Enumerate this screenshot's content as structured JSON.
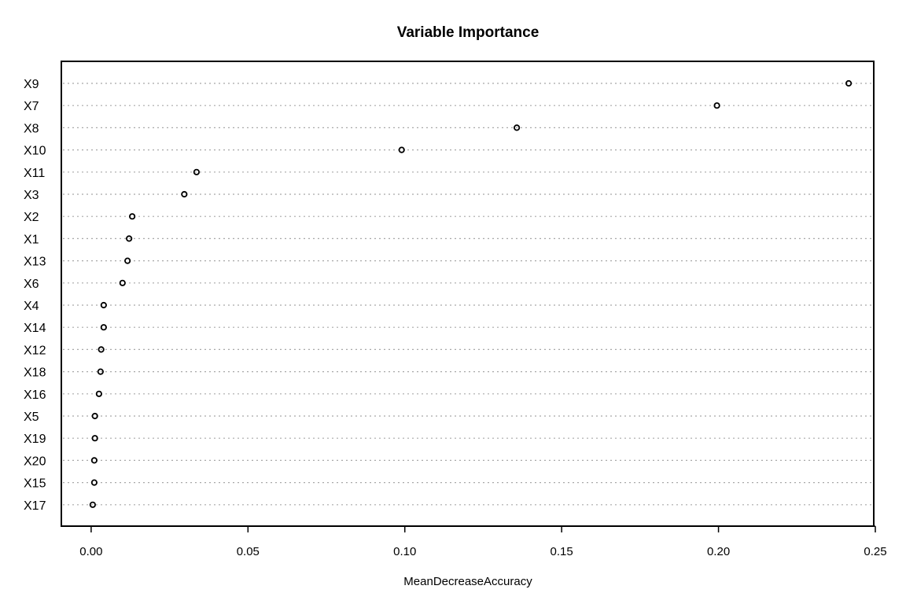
{
  "chart_data": {
    "type": "scatter",
    "title": "Variable Importance",
    "xlabel": "MeanDecreaseAccuracy",
    "ylabel": "",
    "xlim": [
      -0.0095,
      0.2495
    ],
    "xticks": [
      "0.00",
      "0.05",
      "0.10",
      "0.15",
      "0.20",
      "0.25"
    ],
    "grid": "dotted horizontal lines per variable",
    "legend": "none",
    "marker": "open circle",
    "categories": [
      "X9",
      "X7",
      "X8",
      "X10",
      "X11",
      "X3",
      "X2",
      "X1",
      "X13",
      "X6",
      "X4",
      "X14",
      "X12",
      "X18",
      "X16",
      "X5",
      "X19",
      "X20",
      "X15",
      "X17"
    ],
    "values": [
      0.2415,
      0.1995,
      0.1357,
      0.099,
      0.0336,
      0.0297,
      0.0131,
      0.0121,
      0.0116,
      0.01,
      0.004,
      0.004,
      0.0032,
      0.003,
      0.0025,
      0.0012,
      0.0012,
      0.001,
      0.001,
      0.0005
    ]
  }
}
